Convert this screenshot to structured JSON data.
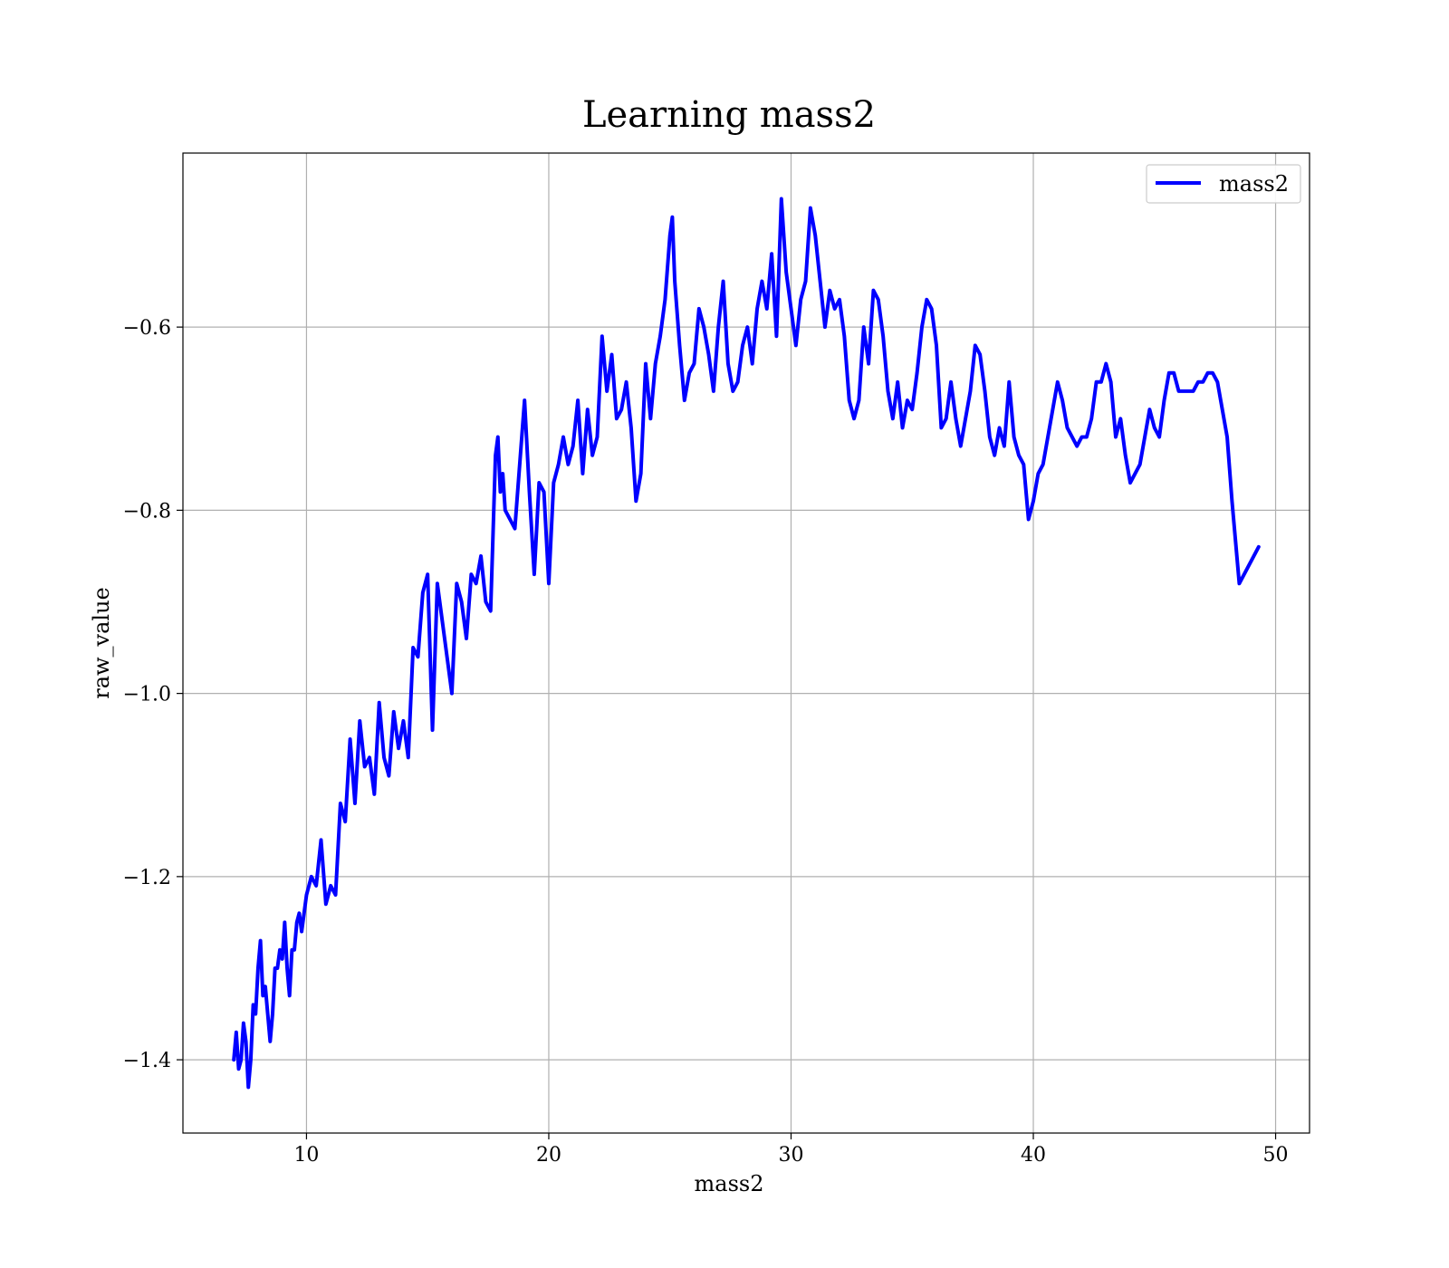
{
  "chart_data": {
    "type": "line",
    "title": "Learning mass2",
    "xlabel": "mass2",
    "ylabel": "raw_value",
    "xlim": [
      4.9,
      51.4
    ],
    "ylim": [
      -1.48,
      -0.41
    ],
    "x_ticks": [
      10,
      20,
      30,
      40,
      50
    ],
    "x_tick_labels": [
      "10",
      "20",
      "30",
      "40",
      "50"
    ],
    "y_ticks": [
      -1.4,
      -1.2,
      -1.0,
      -0.8,
      -0.6
    ],
    "y_tick_labels": [
      "−1.4",
      "−1.2",
      "−1.0",
      "−0.8",
      "−0.6"
    ],
    "grid": true,
    "legend_position": "top-right",
    "line_color": "#0000ff",
    "series": [
      {
        "name": "mass2",
        "x": [
          7.0,
          7.1,
          7.2,
          7.3,
          7.4,
          7.5,
          7.6,
          7.7,
          7.8,
          7.9,
          8.0,
          8.1,
          8.2,
          8.3,
          8.4,
          8.5,
          8.6,
          8.7,
          8.8,
          8.9,
          9.0,
          9.1,
          9.2,
          9.3,
          9.4,
          9.5,
          9.6,
          9.7,
          9.8,
          9.9,
          10.0,
          10.2,
          10.4,
          10.6,
          10.8,
          11.0,
          11.2,
          11.4,
          11.6,
          11.8,
          12.0,
          12.2,
          12.4,
          12.6,
          12.8,
          13.0,
          13.2,
          13.4,
          13.6,
          13.8,
          14.0,
          14.2,
          14.4,
          14.6,
          14.8,
          15.0,
          15.2,
          15.4,
          15.6,
          15.8,
          16.0,
          16.2,
          16.4,
          16.6,
          16.8,
          17.0,
          17.2,
          17.4,
          17.6,
          17.8,
          17.9,
          18.0,
          18.1,
          18.2,
          18.4,
          18.6,
          18.8,
          19.0,
          19.2,
          19.4,
          19.6,
          19.8,
          20.0,
          20.2,
          20.4,
          20.6,
          20.8,
          21.0,
          21.2,
          21.4,
          21.6,
          21.8,
          22.0,
          22.2,
          22.4,
          22.6,
          22.8,
          23.0,
          23.2,
          23.4,
          23.6,
          23.8,
          24.0,
          24.2,
          24.4,
          24.6,
          24.8,
          25.0,
          25.1,
          25.2,
          25.4,
          25.6,
          25.8,
          26.0,
          26.2,
          26.4,
          26.6,
          26.8,
          27.0,
          27.2,
          27.4,
          27.6,
          27.8,
          28.0,
          28.2,
          28.4,
          28.6,
          28.8,
          29.0,
          29.2,
          29.4,
          29.6,
          29.8,
          30.0,
          30.2,
          30.4,
          30.6,
          30.8,
          31.0,
          31.2,
          31.4,
          31.6,
          31.8,
          32.0,
          32.2,
          32.4,
          32.6,
          32.8,
          33.0,
          33.2,
          33.4,
          33.6,
          33.8,
          34.0,
          34.2,
          34.4,
          34.6,
          34.8,
          35.0,
          35.2,
          35.4,
          35.6,
          35.8,
          36.0,
          36.2,
          36.4,
          36.6,
          36.8,
          37.0,
          37.2,
          37.4,
          37.6,
          37.8,
          38.0,
          38.2,
          38.4,
          38.6,
          38.8,
          39.0,
          39.2,
          39.4,
          39.6,
          39.8,
          40.0,
          40.2,
          40.4,
          40.6,
          40.8,
          41.0,
          41.2,
          41.4,
          41.6,
          41.8,
          42.0,
          42.2,
          42.4,
          42.6,
          42.8,
          43.0,
          43.2,
          43.4,
          43.6,
          43.8,
          44.0,
          44.2,
          44.4,
          44.6,
          44.8,
          45.0,
          45.2,
          45.4,
          45.6,
          45.8,
          46.0,
          46.2,
          46.4,
          46.6,
          46.8,
          47.0,
          47.2,
          47.4,
          47.6,
          47.8,
          48.0,
          48.2,
          48.5,
          49.3
        ],
        "y": [
          -1.4,
          -1.37,
          -1.41,
          -1.4,
          -1.36,
          -1.38,
          -1.43,
          -1.4,
          -1.34,
          -1.35,
          -1.3,
          -1.27,
          -1.33,
          -1.32,
          -1.35,
          -1.38,
          -1.35,
          -1.3,
          -1.3,
          -1.28,
          -1.29,
          -1.25,
          -1.3,
          -1.33,
          -1.28,
          -1.28,
          -1.25,
          -1.24,
          -1.26,
          -1.24,
          -1.22,
          -1.2,
          -1.21,
          -1.16,
          -1.23,
          -1.21,
          -1.22,
          -1.12,
          -1.14,
          -1.05,
          -1.12,
          -1.03,
          -1.08,
          -1.07,
          -1.11,
          -1.01,
          -1.07,
          -1.09,
          -1.02,
          -1.06,
          -1.03,
          -1.07,
          -0.95,
          -0.96,
          -0.89,
          -0.87,
          -1.04,
          -0.88,
          -0.92,
          -0.96,
          -1.0,
          -0.88,
          -0.9,
          -0.94,
          -0.87,
          -0.88,
          -0.85,
          -0.9,
          -0.91,
          -0.74,
          -0.72,
          -0.78,
          -0.76,
          -0.8,
          -0.81,
          -0.82,
          -0.75,
          -0.68,
          -0.78,
          -0.87,
          -0.77,
          -0.78,
          -0.88,
          -0.77,
          -0.75,
          -0.72,
          -0.75,
          -0.73,
          -0.68,
          -0.76,
          -0.69,
          -0.74,
          -0.72,
          -0.61,
          -0.67,
          -0.63,
          -0.7,
          -0.69,
          -0.66,
          -0.71,
          -0.79,
          -0.76,
          -0.64,
          -0.7,
          -0.64,
          -0.61,
          -0.57,
          -0.5,
          -0.48,
          -0.55,
          -0.62,
          -0.68,
          -0.65,
          -0.64,
          -0.58,
          -0.6,
          -0.63,
          -0.67,
          -0.6,
          -0.55,
          -0.64,
          -0.67,
          -0.66,
          -0.62,
          -0.6,
          -0.64,
          -0.58,
          -0.55,
          -0.58,
          -0.52,
          -0.61,
          -0.46,
          -0.54,
          -0.58,
          -0.62,
          -0.57,
          -0.55,
          -0.47,
          -0.5,
          -0.55,
          -0.6,
          -0.56,
          -0.58,
          -0.57,
          -0.61,
          -0.68,
          -0.7,
          -0.68,
          -0.6,
          -0.64,
          -0.56,
          -0.57,
          -0.61,
          -0.67,
          -0.7,
          -0.66,
          -0.71,
          -0.68,
          -0.69,
          -0.65,
          -0.6,
          -0.57,
          -0.58,
          -0.62,
          -0.71,
          -0.7,
          -0.66,
          -0.7,
          -0.73,
          -0.7,
          -0.67,
          -0.62,
          -0.63,
          -0.67,
          -0.72,
          -0.74,
          -0.71,
          -0.73,
          -0.66,
          -0.72,
          -0.74,
          -0.75,
          -0.81,
          -0.79,
          -0.76,
          -0.75,
          -0.72,
          -0.69,
          -0.66,
          -0.68,
          -0.71,
          -0.72,
          -0.73,
          -0.72,
          -0.72,
          -0.7,
          -0.66,
          -0.66,
          -0.64,
          -0.66,
          -0.72,
          -0.7,
          -0.74,
          -0.77,
          -0.76,
          -0.75,
          -0.72,
          -0.69,
          -0.71,
          -0.72,
          -0.68,
          -0.65,
          -0.65,
          -0.67,
          -0.67,
          -0.67,
          -0.67,
          -0.66,
          -0.66,
          -0.65,
          -0.65,
          -0.66,
          -0.69,
          -0.72,
          -0.79,
          -0.88,
          -0.84
        ]
      }
    ]
  }
}
